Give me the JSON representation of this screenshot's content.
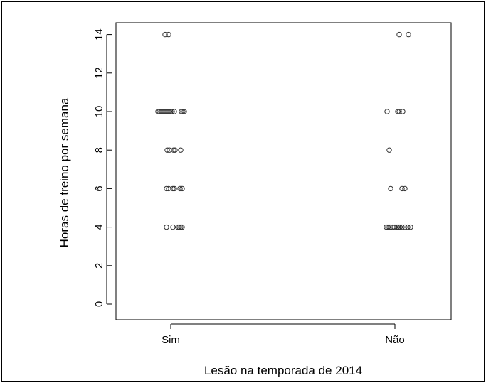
{
  "chart_data": {
    "type": "scatter",
    "xlabel": "Lesão na temporada de 2014",
    "ylabel": "Horas de treino por semana",
    "categories": [
      "Sim",
      "Não"
    ],
    "ylim": [
      0,
      14
    ],
    "yticks": [
      "0",
      "2",
      "4",
      "6",
      "8",
      "10",
      "12",
      "14"
    ],
    "grid": false,
    "series": [
      {
        "category": "Sim",
        "points": [
          {
            "dx": -0.08,
            "y": 14
          },
          {
            "dx": -0.03,
            "y": 14
          },
          {
            "dx": -0.18,
            "y": 10
          },
          {
            "dx": -0.16,
            "y": 10
          },
          {
            "dx": -0.14,
            "y": 10
          },
          {
            "dx": -0.12,
            "y": 10
          },
          {
            "dx": -0.1,
            "y": 10
          },
          {
            "dx": -0.08,
            "y": 10
          },
          {
            "dx": -0.06,
            "y": 10
          },
          {
            "dx": -0.04,
            "y": 10
          },
          {
            "dx": -0.02,
            "y": 10
          },
          {
            "dx": 0.0,
            "y": 10
          },
          {
            "dx": 0.02,
            "y": 10
          },
          {
            "dx": 0.05,
            "y": 10
          },
          {
            "dx": 0.15,
            "y": 10
          },
          {
            "dx": 0.17,
            "y": 10
          },
          {
            "dx": 0.19,
            "y": 10
          },
          {
            "dx": -0.05,
            "y": 8
          },
          {
            "dx": -0.02,
            "y": 8
          },
          {
            "dx": 0.04,
            "y": 8
          },
          {
            "dx": 0.06,
            "y": 8
          },
          {
            "dx": 0.14,
            "y": 8
          },
          {
            "dx": -0.06,
            "y": 6
          },
          {
            "dx": -0.03,
            "y": 6
          },
          {
            "dx": 0.03,
            "y": 6
          },
          {
            "dx": 0.05,
            "y": 6
          },
          {
            "dx": 0.13,
            "y": 6
          },
          {
            "dx": 0.16,
            "y": 6
          },
          {
            "dx": -0.06,
            "y": 4
          },
          {
            "dx": 0.03,
            "y": 4
          },
          {
            "dx": 0.1,
            "y": 4
          },
          {
            "dx": 0.12,
            "y": 4
          },
          {
            "dx": 0.14,
            "y": 4
          },
          {
            "dx": 0.16,
            "y": 4
          }
        ]
      },
      {
        "category": "Não",
        "points": [
          {
            "dx": 0.06,
            "y": 14
          },
          {
            "dx": 0.19,
            "y": 14
          },
          {
            "dx": -0.11,
            "y": 10
          },
          {
            "dx": 0.04,
            "y": 10
          },
          {
            "dx": 0.06,
            "y": 10
          },
          {
            "dx": 0.11,
            "y": 10
          },
          {
            "dx": -0.08,
            "y": 8
          },
          {
            "dx": -0.06,
            "y": 6
          },
          {
            "dx": 0.1,
            "y": 6
          },
          {
            "dx": 0.14,
            "y": 6
          },
          {
            "dx": -0.12,
            "y": 4
          },
          {
            "dx": -0.1,
            "y": 4
          },
          {
            "dx": -0.08,
            "y": 4
          },
          {
            "dx": -0.06,
            "y": 4
          },
          {
            "dx": -0.03,
            "y": 4
          },
          {
            "dx": 0.0,
            "y": 4
          },
          {
            "dx": 0.03,
            "y": 4
          },
          {
            "dx": 0.05,
            "y": 4
          },
          {
            "dx": 0.07,
            "y": 4
          },
          {
            "dx": 0.1,
            "y": 4
          },
          {
            "dx": 0.14,
            "y": 4
          },
          {
            "dx": 0.18,
            "y": 4
          },
          {
            "dx": 0.22,
            "y": 4
          }
        ]
      }
    ]
  }
}
